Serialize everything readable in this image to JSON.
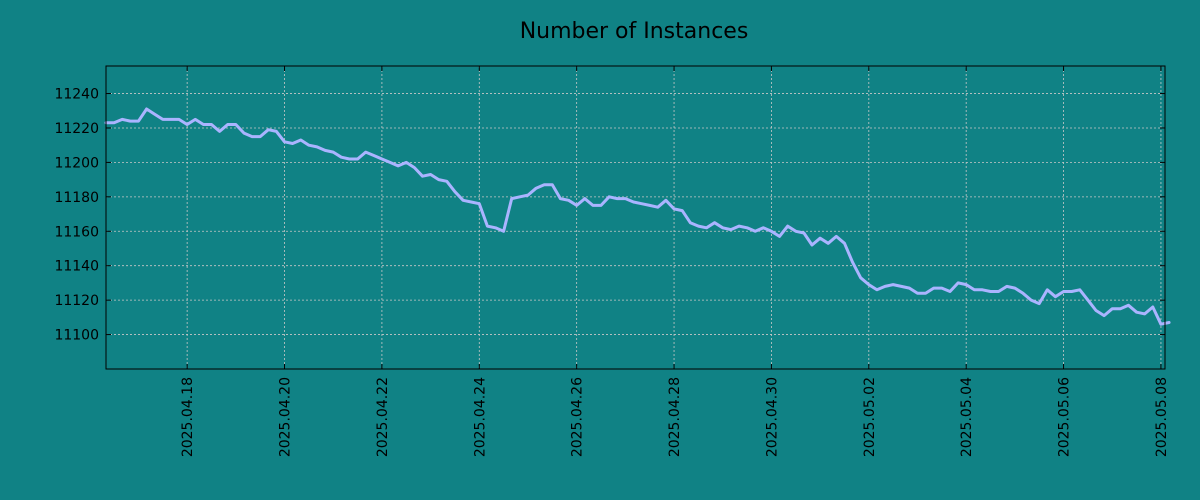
{
  "chart_data": {
    "type": "line",
    "title": "Number of Instances",
    "xlabel": "",
    "ylabel": "",
    "x_tick_labels": [
      "2025.04.18",
      "2025.04.20",
      "2025.04.22",
      "2025.04.24",
      "2025.04.26",
      "2025.04.28",
      "2025.04.30",
      "2025.05.02",
      "2025.05.04",
      "2025.05.06",
      "2025.05.08"
    ],
    "y_ticks": [
      11100,
      11120,
      11140,
      11160,
      11180,
      11200,
      11220,
      11240
    ],
    "xlim": [
      "2025-04-16 08:00",
      "2025-05-08 02:00"
    ],
    "ylim": [
      11080,
      11256
    ],
    "grid": true,
    "colors": {
      "background": "#108285",
      "line": "#aab4ff",
      "grid": "#c8c8c8",
      "frame": "#000000"
    },
    "series": [
      {
        "values": [
          [
            "2025-04-16 08:00",
            11223
          ],
          [
            "2025-04-16 12:00",
            11223
          ],
          [
            "2025-04-16 16:00",
            11225
          ],
          [
            "2025-04-16 20:00",
            11224
          ],
          [
            "2025-04-17 00:00",
            11224
          ],
          [
            "2025-04-17 04:00",
            11231
          ],
          [
            "2025-04-17 08:00",
            11228
          ],
          [
            "2025-04-17 12:00",
            11225
          ],
          [
            "2025-04-17 16:00",
            11225
          ],
          [
            "2025-04-17 20:00",
            11225
          ],
          [
            "2025-04-18 00:00",
            11222
          ],
          [
            "2025-04-18 04:00",
            11225
          ],
          [
            "2025-04-18 08:00",
            11222
          ],
          [
            "2025-04-18 12:00",
            11222
          ],
          [
            "2025-04-18 16:00",
            11218
          ],
          [
            "2025-04-18 20:00",
            11222
          ],
          [
            "2025-04-19 00:00",
            11222
          ],
          [
            "2025-04-19 04:00",
            11217
          ],
          [
            "2025-04-19 08:00",
            11215
          ],
          [
            "2025-04-19 12:00",
            11215
          ],
          [
            "2025-04-19 16:00",
            11219
          ],
          [
            "2025-04-19 20:00",
            11218
          ],
          [
            "2025-04-20 00:00",
            11212
          ],
          [
            "2025-04-20 04:00",
            11211
          ],
          [
            "2025-04-20 08:00",
            11213
          ],
          [
            "2025-04-20 12:00",
            11210
          ],
          [
            "2025-04-20 16:00",
            11209
          ],
          [
            "2025-04-20 20:00",
            11207
          ],
          [
            "2025-04-21 00:00",
            11206
          ],
          [
            "2025-04-21 04:00",
            11203
          ],
          [
            "2025-04-21 08:00",
            11202
          ],
          [
            "2025-04-21 12:00",
            11202
          ],
          [
            "2025-04-21 16:00",
            11206
          ],
          [
            "2025-04-21 20:00",
            11204
          ],
          [
            "2025-04-22 00:00",
            11202
          ],
          [
            "2025-04-22 04:00",
            11200
          ],
          [
            "2025-04-22 08:00",
            11198
          ],
          [
            "2025-04-22 12:00",
            11200
          ],
          [
            "2025-04-22 16:00",
            11197
          ],
          [
            "2025-04-22 20:00",
            11192
          ],
          [
            "2025-04-23 00:00",
            11193
          ],
          [
            "2025-04-23 04:00",
            11190
          ],
          [
            "2025-04-23 08:00",
            11189
          ],
          [
            "2025-04-23 12:00",
            11183
          ],
          [
            "2025-04-23 16:00",
            11178
          ],
          [
            "2025-04-23 20:00",
            11177
          ],
          [
            "2025-04-24 00:00",
            11176
          ],
          [
            "2025-04-24 04:00",
            11163
          ],
          [
            "2025-04-24 08:00",
            11162
          ],
          [
            "2025-04-24 12:00",
            11160
          ],
          [
            "2025-04-24 16:00",
            11179
          ],
          [
            "2025-04-24 20:00",
            11180
          ],
          [
            "2025-04-25 00:00",
            11181
          ],
          [
            "2025-04-25 04:00",
            11185
          ],
          [
            "2025-04-25 08:00",
            11187
          ],
          [
            "2025-04-25 12:00",
            11187
          ],
          [
            "2025-04-25 16:00",
            11179
          ],
          [
            "2025-04-25 20:00",
            11178
          ],
          [
            "2025-04-26 00:00",
            11175
          ],
          [
            "2025-04-26 04:00",
            11179
          ],
          [
            "2025-04-26 08:00",
            11175
          ],
          [
            "2025-04-26 12:00",
            11175
          ],
          [
            "2025-04-26 16:00",
            11180
          ],
          [
            "2025-04-26 20:00",
            11179
          ],
          [
            "2025-04-27 00:00",
            11179
          ],
          [
            "2025-04-27 04:00",
            11177
          ],
          [
            "2025-04-27 08:00",
            11176
          ],
          [
            "2025-04-27 12:00",
            11175
          ],
          [
            "2025-04-27 16:00",
            11174
          ],
          [
            "2025-04-27 20:00",
            11178
          ],
          [
            "2025-04-28 00:00",
            11173
          ],
          [
            "2025-04-28 04:00",
            11172
          ],
          [
            "2025-04-28 08:00",
            11165
          ],
          [
            "2025-04-28 12:00",
            11163
          ],
          [
            "2025-04-28 16:00",
            11162
          ],
          [
            "2025-04-28 20:00",
            11165
          ],
          [
            "2025-04-29 00:00",
            11162
          ],
          [
            "2025-04-29 04:00",
            11161
          ],
          [
            "2025-04-29 08:00",
            11163
          ],
          [
            "2025-04-29 12:00",
            11162
          ],
          [
            "2025-04-29 16:00",
            11160
          ],
          [
            "2025-04-29 20:00",
            11162
          ],
          [
            "2025-04-30 00:00",
            11160
          ],
          [
            "2025-04-30 04:00",
            11157
          ],
          [
            "2025-04-30 08:00",
            11163
          ],
          [
            "2025-04-30 12:00",
            11160
          ],
          [
            "2025-04-30 16:00",
            11159
          ],
          [
            "2025-04-30 20:00",
            11152
          ],
          [
            "2025-05-01 00:00",
            11156
          ],
          [
            "2025-05-01 04:00",
            11153
          ],
          [
            "2025-05-01 08:00",
            11157
          ],
          [
            "2025-05-01 12:00",
            11153
          ],
          [
            "2025-05-01 16:00",
            11142
          ],
          [
            "2025-05-01 20:00",
            11133
          ],
          [
            "2025-05-02 00:00",
            11129
          ],
          [
            "2025-05-02 04:00",
            11126
          ],
          [
            "2025-05-02 08:00",
            11128
          ],
          [
            "2025-05-02 12:00",
            11129
          ],
          [
            "2025-05-02 16:00",
            11128
          ],
          [
            "2025-05-02 20:00",
            11127
          ],
          [
            "2025-05-03 00:00",
            11124
          ],
          [
            "2025-05-03 04:00",
            11124
          ],
          [
            "2025-05-03 08:00",
            11127
          ],
          [
            "2025-05-03 12:00",
            11127
          ],
          [
            "2025-05-03 16:00",
            11125
          ],
          [
            "2025-05-03 20:00",
            11130
          ],
          [
            "2025-05-04 00:00",
            11129
          ],
          [
            "2025-05-04 04:00",
            11126
          ],
          [
            "2025-05-04 08:00",
            11126
          ],
          [
            "2025-05-04 12:00",
            11125
          ],
          [
            "2025-05-04 16:00",
            11125
          ],
          [
            "2025-05-04 20:00",
            11128
          ],
          [
            "2025-05-05 00:00",
            11127
          ],
          [
            "2025-05-05 04:00",
            11124
          ],
          [
            "2025-05-05 08:00",
            11120
          ],
          [
            "2025-05-05 12:00",
            11118
          ],
          [
            "2025-05-05 16:00",
            11126
          ],
          [
            "2025-05-05 20:00",
            11122
          ],
          [
            "2025-05-06 00:00",
            11125
          ],
          [
            "2025-05-06 04:00",
            11125
          ],
          [
            "2025-05-06 08:00",
            11126
          ],
          [
            "2025-05-06 12:00",
            11120
          ],
          [
            "2025-05-06 16:00",
            11114
          ],
          [
            "2025-05-06 20:00",
            11111
          ],
          [
            "2025-05-07 00:00",
            11115
          ],
          [
            "2025-05-07 04:00",
            11115
          ],
          [
            "2025-05-07 08:00",
            11117
          ],
          [
            "2025-05-07 12:00",
            11113
          ],
          [
            "2025-05-07 16:00",
            11112
          ],
          [
            "2025-05-07 20:00",
            11116
          ],
          [
            "2025-05-08 00:00",
            11106
          ],
          [
            "2025-05-08 04:00",
            11107
          ]
        ]
      }
    ]
  }
}
